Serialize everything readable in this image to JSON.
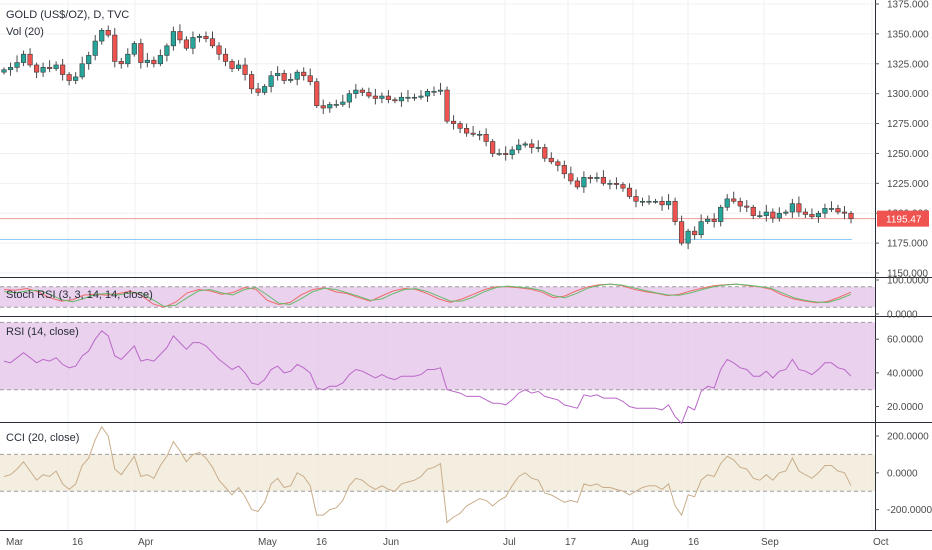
{
  "chart_data": [
    {
      "type": "candlestick",
      "title": "GOLD (US$/OZ), D, TVC",
      "subtitle": "Vol (20)",
      "ylim": [
        1150,
        1375
      ],
      "y_ticks": [
        "1375.000",
        "1350.000",
        "1325.000",
        "1300.000",
        "1275.000",
        "1250.000",
        "1225.000",
        "1200.000",
        "1175.000",
        "1150.000"
      ],
      "y_values": [
        1375,
        1350,
        1325,
        1300,
        1275,
        1250,
        1225,
        1200,
        1175,
        1150
      ],
      "last_price_label": "1195.47",
      "last_price": 1195.47,
      "support_level": 1178,
      "up_color": "#26a69a",
      "down_color": "#ef5350",
      "grid": true,
      "closes": [
        1320,
        1322,
        1326,
        1333,
        1324,
        1318,
        1322,
        1321,
        1324,
        1316,
        1311,
        1314,
        1325,
        1332,
        1344,
        1353,
        1349,
        1327,
        1325,
        1333,
        1342,
        1326,
        1328,
        1325,
        1332,
        1340,
        1352,
        1345,
        1338,
        1347,
        1348,
        1346,
        1340,
        1333,
        1327,
        1321,
        1324,
        1316,
        1304,
        1301,
        1306,
        1315,
        1317,
        1311,
        1312,
        1318,
        1315,
        1310,
        1290,
        1288,
        1291,
        1291,
        1293,
        1300,
        1303,
        1301,
        1298,
        1296,
        1298,
        1295,
        1294,
        1297,
        1297,
        1297,
        1298,
        1302,
        1302,
        1303,
        1277,
        1275,
        1271,
        1267,
        1266,
        1266,
        1260,
        1250,
        1250,
        1249,
        1253,
        1257,
        1258,
        1255,
        1255,
        1246,
        1243,
        1240,
        1233,
        1227,
        1222,
        1230,
        1229,
        1230,
        1225,
        1225,
        1224,
        1221,
        1214,
        1210,
        1210,
        1210,
        1210,
        1207,
        1210,
        1193,
        1175,
        1185,
        1182,
        1193,
        1195,
        1193,
        1205,
        1212,
        1210,
        1206,
        1205,
        1198,
        1198,
        1201,
        1196,
        1200,
        1201,
        1208,
        1201,
        1199,
        1197,
        1200,
        1204,
        1204,
        1201,
        1200,
        1195.47
      ]
    },
    {
      "type": "line",
      "title": "Stoch RSI (3, 3, 14, 14, close)",
      "ylim": [
        0,
        100
      ],
      "y_ticks": [
        "100.0000",
        "0.0000"
      ],
      "y_values": [
        100,
        0
      ],
      "band": [
        20,
        80
      ],
      "band_color": "#e1bee7",
      "series": [
        {
          "color": "#ef6c6c",
          "values": [
            72,
            70,
            75,
            65,
            48,
            38,
            42,
            56,
            58,
            55,
            60,
            67,
            55,
            30,
            20,
            35,
            62,
            72,
            68,
            58,
            63,
            78,
            73,
            40,
            28,
            34,
            57,
            72,
            77,
            65,
            60,
            48,
            38,
            53,
            68,
            75,
            72,
            60,
            44,
            34,
            44,
            58,
            72,
            80,
            80,
            77,
            73,
            64,
            48,
            53,
            68,
            80,
            86,
            88,
            83,
            73,
            66,
            61,
            54,
            58,
            68,
            76,
            83,
            86,
            88,
            83,
            80,
            73,
            56,
            44,
            38,
            33,
            37,
            50,
            64
          ]
        },
        {
          "color": "#66bb6a",
          "values": [
            66,
            62,
            68,
            70,
            58,
            42,
            36,
            46,
            58,
            60,
            56,
            62,
            62,
            42,
            22,
            26,
            48,
            68,
            72,
            62,
            56,
            72,
            78,
            56,
            32,
            28,
            46,
            66,
            76,
            72,
            62,
            52,
            40,
            44,
            60,
            72,
            74,
            66,
            52,
            38,
            38,
            50,
            66,
            78,
            82,
            79,
            76,
            69,
            54,
            48,
            60,
            76,
            84,
            88,
            85,
            77,
            69,
            62,
            56,
            55,
            62,
            72,
            80,
            85,
            88,
            85,
            81,
            76,
            62,
            48,
            40,
            35,
            34,
            44,
            58
          ]
        }
      ]
    },
    {
      "type": "line",
      "title": "RSI (14, close)",
      "ylim": [
        12,
        72
      ],
      "y_ticks": [
        "60.0000",
        "40.0000",
        "20.0000"
      ],
      "y_values": [
        60,
        40,
        20
      ],
      "band": [
        30,
        70
      ],
      "band_color": "#e1bee7",
      "series": [
        {
          "color": "#ba68c8",
          "values": [
            47,
            46,
            49,
            52,
            49,
            46,
            48,
            47,
            49,
            45,
            43,
            44,
            50,
            53,
            60,
            65,
            62,
            50,
            48,
            52,
            56,
            47,
            48,
            47,
            51,
            55,
            62,
            58,
            54,
            58,
            58,
            56,
            52,
            48,
            45,
            42,
            44,
            40,
            34,
            33,
            36,
            42,
            44,
            40,
            41,
            45,
            43,
            40,
            31,
            30,
            32,
            32,
            34,
            39,
            42,
            41,
            39,
            37,
            39,
            37,
            36,
            38,
            38,
            38,
            39,
            42,
            42,
            43,
            30,
            29,
            28,
            26,
            26,
            26,
            24,
            22,
            22,
            21,
            24,
            28,
            30,
            28,
            29,
            26,
            25,
            24,
            21,
            20,
            19,
            27,
            26,
            27,
            25,
            25,
            25,
            23,
            20,
            19,
            19,
            19,
            19,
            18,
            21,
            14,
            10,
            20,
            18,
            29,
            32,
            31,
            42,
            48,
            46,
            43,
            42,
            38,
            38,
            41,
            37,
            41,
            42,
            48,
            42,
            41,
            39,
            42,
            46,
            46,
            43,
            42,
            38
          ]
        }
      ]
    },
    {
      "type": "line",
      "title": "CCI (20, close)",
      "ylim": [
        -300,
        260
      ],
      "y_ticks": [
        "200.0000",
        "0.0000",
        "-200.0000"
      ],
      "y_values": [
        200,
        0,
        -200
      ],
      "band": [
        -100,
        100
      ],
      "band_color": "#efe7d4",
      "series": [
        {
          "color": "#c9ad8a",
          "values": [
            -20,
            -10,
            20,
            60,
            10,
            -40,
            -10,
            -20,
            10,
            -60,
            -90,
            -60,
            40,
            80,
            180,
            250,
            200,
            20,
            -10,
            40,
            90,
            -20,
            -10,
            -30,
            40,
            90,
            170,
            120,
            60,
            100,
            110,
            80,
            30,
            -40,
            -80,
            -120,
            -80,
            -130,
            -200,
            -210,
            -160,
            -60,
            -30,
            -80,
            -70,
            0,
            -20,
            -70,
            -230,
            -230,
            -200,
            -190,
            -150,
            -70,
            -30,
            -40,
            -70,
            -90,
            -70,
            -90,
            -100,
            -60,
            -50,
            -40,
            -20,
            20,
            30,
            50,
            -270,
            -240,
            -220,
            -180,
            -160,
            -140,
            -150,
            -180,
            -150,
            -130,
            -70,
            -20,
            0,
            -30,
            -40,
            -110,
            -120,
            -140,
            -160,
            -150,
            -160,
            -60,
            -70,
            -60,
            -80,
            -80,
            -90,
            -100,
            -120,
            -100,
            -80,
            -70,
            -70,
            -90,
            -60,
            -180,
            -230,
            -120,
            -130,
            -40,
            -10,
            -20,
            50,
            90,
            70,
            30,
            20,
            -30,
            -40,
            -10,
            -40,
            0,
            10,
            80,
            10,
            -10,
            -30,
            0,
            40,
            40,
            10,
            0,
            -70
          ]
        }
      ]
    }
  ],
  "x_axis": {
    "labels": [
      "Mar",
      "16",
      "Apr",
      "May",
      "16",
      "Jun",
      "Jul",
      "17",
      "Aug",
      "16",
      "Sep",
      "Oct"
    ]
  }
}
